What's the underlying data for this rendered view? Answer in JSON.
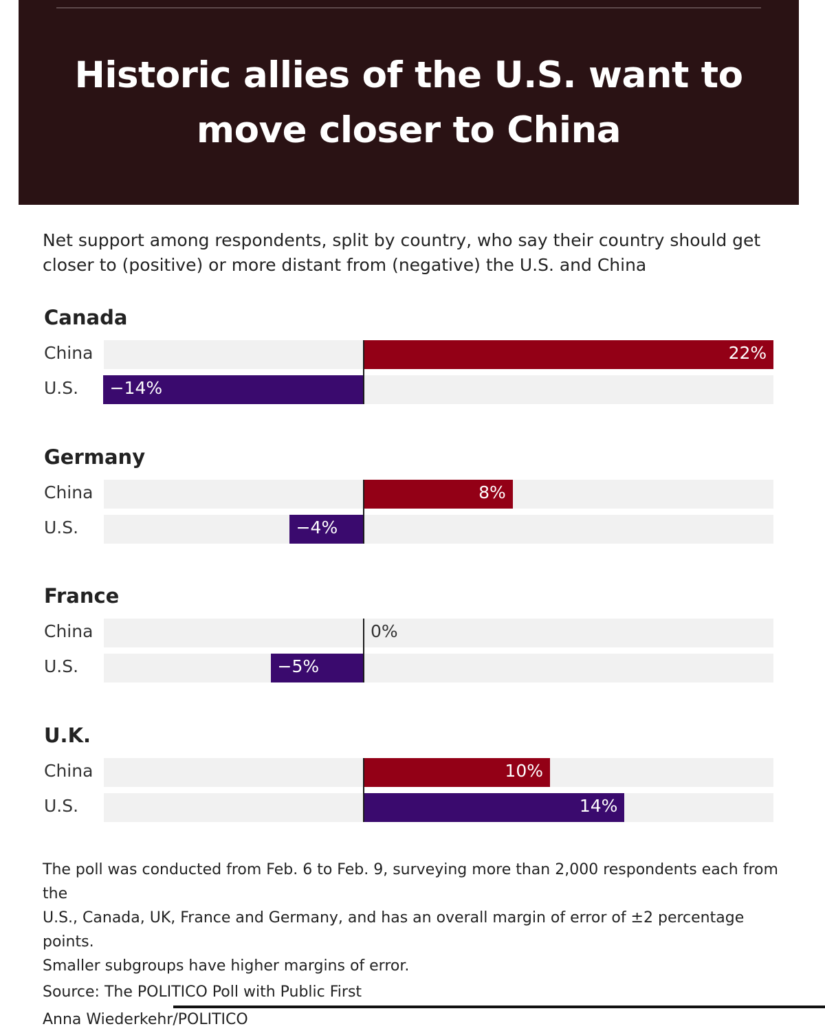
{
  "header": {
    "title_line1": "Historic allies of the U.S. want to",
    "title_line2": "move closer to China"
  },
  "subtitle_line1": "Net support among respondents, split by country, who say their country should get",
  "subtitle_line2": "closer to (positive) or more distant from (negative) the U.S. and China",
  "colors": {
    "china": "#930016",
    "us": "#3a0a6e",
    "track": "#f1f1f1",
    "header_bg": "#2a1214"
  },
  "chart_data": {
    "type": "bar",
    "orientation": "horizontal",
    "xlim": [
      -22,
      22
    ],
    "groups": [
      {
        "name": "Canada",
        "rows": [
          {
            "name": "China",
            "value": 22,
            "label": "22%"
          },
          {
            "name": "U.S.",
            "value": -14,
            "label": "−14%"
          }
        ]
      },
      {
        "name": "Germany",
        "rows": [
          {
            "name": "China",
            "value": 8,
            "label": "8%"
          },
          {
            "name": "U.S.",
            "value": -4,
            "label": "−4%"
          }
        ]
      },
      {
        "name": "France",
        "rows": [
          {
            "name": "China",
            "value": 0,
            "label": "0%"
          },
          {
            "name": "U.S.",
            "value": -5,
            "label": "−5%"
          }
        ]
      },
      {
        "name": "U.K.",
        "rows": [
          {
            "name": "China",
            "value": 10,
            "label": "10%"
          },
          {
            "name": "U.S.",
            "value": 14,
            "label": "14%"
          }
        ]
      }
    ]
  },
  "footer": {
    "note_line1": "The poll was conducted from Feb. 6 to Feb. 9, surveying more than 2,000 respondents each from the",
    "note_line2": "U.S., Canada, UK, France and Germany, and has an overall margin of error of ±2 percentage points.",
    "note_line3": "Smaller subgroups have higher margins of error.",
    "source": "Source: The POLITICO Poll with Public First",
    "credit": "Anna Wiederkehr/POLITICO"
  }
}
